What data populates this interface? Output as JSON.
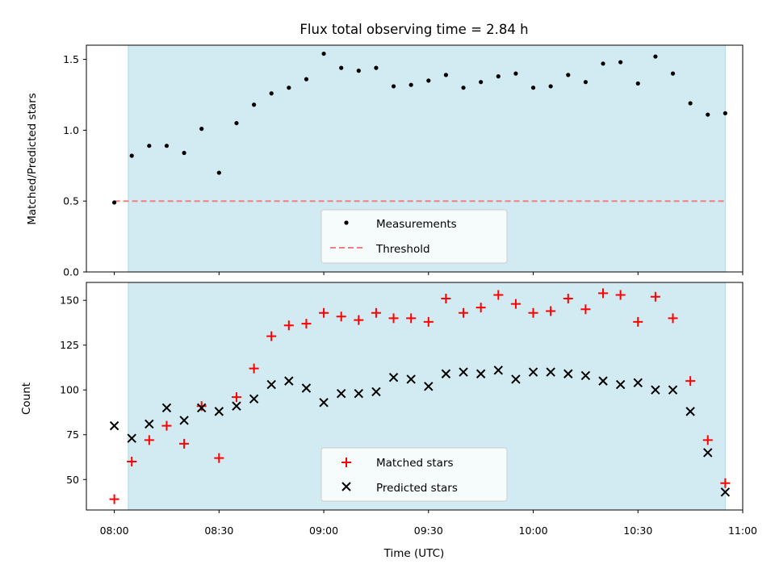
{
  "chart_data": [
    {
      "type": "scatter",
      "title": "Flux total observing time = 2.84 h",
      "ylabel": "Matched/Predicted stars",
      "xlabel": "",
      "xlim": [
        "07:52",
        "11:00"
      ],
      "ylim": [
        0,
        1.6
      ],
      "x_tick_labels": [],
      "y_ticks": [
        0.0,
        0.5,
        1.0,
        1.5
      ],
      "y_tick_labels": [
        "0.0",
        "0.5",
        "1.0",
        "1.5"
      ],
      "shaded_region": {
        "start": "08:04",
        "end": "10:55",
        "color": "#add8e6"
      },
      "threshold": {
        "name": "Threshold",
        "value": 0.5,
        "start": "08:00",
        "end": "10:55",
        "color": "#f08080",
        "style": "dashed"
      },
      "series": [
        {
          "name": "Measurements",
          "marker": "dot",
          "color": "#000000",
          "x": [
            "08:00",
            "08:05",
            "08:10",
            "08:15",
            "08:20",
            "08:25",
            "08:30",
            "08:35",
            "08:40",
            "08:45",
            "08:50",
            "08:55",
            "09:00",
            "09:05",
            "09:10",
            "09:15",
            "09:20",
            "09:25",
            "09:30",
            "09:35",
            "09:40",
            "09:45",
            "09:50",
            "09:55",
            "10:00",
            "10:05",
            "10:10",
            "10:15",
            "10:20",
            "10:25",
            "10:30",
            "10:35",
            "10:40",
            "10:45",
            "10:50",
            "10:55"
          ],
          "y": [
            0.49,
            0.82,
            0.89,
            0.89,
            0.84,
            1.01,
            0.7,
            1.05,
            1.18,
            1.26,
            1.3,
            1.36,
            1.54,
            1.44,
            1.42,
            1.44,
            1.31,
            1.32,
            1.35,
            1.39,
            1.3,
            1.34,
            1.38,
            1.4,
            1.3,
            1.31,
            1.39,
            1.34,
            1.47,
            1.48,
            1.33,
            1.52,
            1.4,
            1.19,
            1.11,
            1.12
          ]
        }
      ],
      "legend": {
        "placement": "lower center",
        "entries": [
          "Measurements",
          "Threshold"
        ]
      }
    },
    {
      "type": "scatter",
      "title": "",
      "ylabel": "Count",
      "xlabel": "Time (UTC)",
      "xlim": [
        "07:52",
        "11:00"
      ],
      "ylim": [
        33,
        160
      ],
      "x_ticks": [
        "08:00",
        "08:30",
        "09:00",
        "09:30",
        "10:00",
        "10:30",
        "11:00"
      ],
      "x_tick_labels": [
        "08:00",
        "08:30",
        "09:00",
        "09:30",
        "10:00",
        "10:30",
        "11:00"
      ],
      "y_ticks": [
        50,
        75,
        100,
        125,
        150
      ],
      "y_tick_labels": [
        "50",
        "75",
        "100",
        "125",
        "150"
      ],
      "shaded_region": {
        "start": "08:04",
        "end": "10:55",
        "color": "#add8e6"
      },
      "series": [
        {
          "name": "Matched stars",
          "marker": "plus",
          "color": "#ff0000",
          "x": [
            "08:00",
            "08:05",
            "08:10",
            "08:15",
            "08:20",
            "08:25",
            "08:30",
            "08:35",
            "08:40",
            "08:45",
            "08:50",
            "08:55",
            "09:00",
            "09:05",
            "09:10",
            "09:15",
            "09:20",
            "09:25",
            "09:30",
            "09:35",
            "09:40",
            "09:45",
            "09:50",
            "09:55",
            "10:00",
            "10:05",
            "10:10",
            "10:15",
            "10:20",
            "10:25",
            "10:30",
            "10:35",
            "10:40",
            "10:45",
            "10:50",
            "10:55"
          ],
          "y": [
            39,
            60,
            72,
            80,
            70,
            91,
            62,
            96,
            112,
            130,
            136,
            137,
            143,
            141,
            139,
            143,
            140,
            140,
            138,
            151,
            143,
            146,
            153,
            148,
            143,
            144,
            151,
            145,
            154,
            153,
            138,
            152,
            140,
            105,
            72,
            48
          ]
        },
        {
          "name": "Predicted stars",
          "marker": "x",
          "color": "#000000",
          "x": [
            "08:00",
            "08:05",
            "08:10",
            "08:15",
            "08:20",
            "08:25",
            "08:30",
            "08:35",
            "08:40",
            "08:45",
            "08:50",
            "08:55",
            "09:00",
            "09:05",
            "09:10",
            "09:15",
            "09:20",
            "09:25",
            "09:30",
            "09:35",
            "09:40",
            "09:45",
            "09:50",
            "09:55",
            "10:00",
            "10:05",
            "10:10",
            "10:15",
            "10:20",
            "10:25",
            "10:30",
            "10:35",
            "10:40",
            "10:45",
            "10:50",
            "10:55"
          ],
          "y": [
            80,
            73,
            81,
            90,
            83,
            90,
            88,
            91,
            95,
            103,
            105,
            101,
            93,
            98,
            98,
            99,
            107,
            106,
            102,
            109,
            110,
            109,
            111,
            106,
            110,
            110,
            109,
            108,
            105,
            103,
            104,
            100,
            100,
            88,
            65,
            43
          ]
        }
      ],
      "legend": {
        "placement": "lower center",
        "entries": [
          "Matched stars",
          "Predicted stars"
        ]
      }
    }
  ]
}
